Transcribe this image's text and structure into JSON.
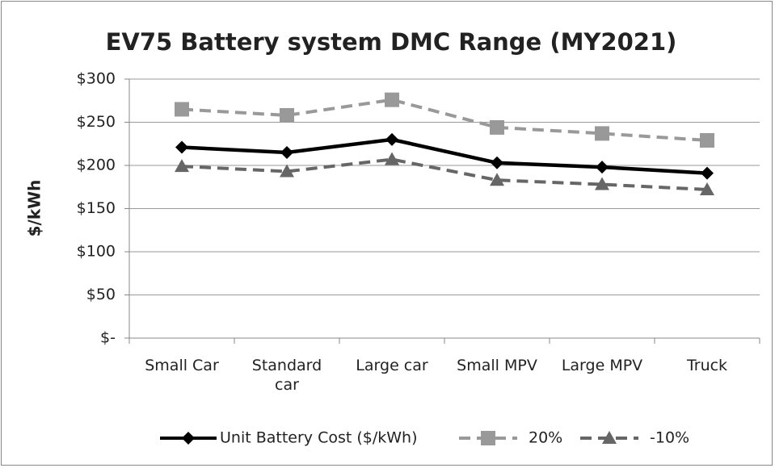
{
  "chart_data": {
    "type": "line",
    "title": "EV75 Battery system DMC Range (MY2021)",
    "y_label": "$/kWh",
    "categories": [
      "Small Car",
      "Standard car",
      "Large car",
      "Small MPV",
      "Large MPV",
      "Truck"
    ],
    "series": [
      {
        "name": "Unit Battery Cost ($/kWh)",
        "color": "#000000",
        "dashed": false,
        "marker": "diamond",
        "values": [
          221,
          215,
          230,
          203,
          198,
          191
        ]
      },
      {
        "name": "20%",
        "color": "#999999",
        "dashed": true,
        "marker": "square",
        "values": [
          265,
          258,
          276,
          244,
          237,
          229
        ]
      },
      {
        "name": "-10%",
        "color": "#666666",
        "dashed": true,
        "marker": "triangle",
        "values": [
          199,
          193,
          207,
          183,
          178,
          172
        ]
      }
    ],
    "ylim": [
      0,
      300
    ],
    "yticks": [
      {
        "value": 0,
        "label": "$-"
      },
      {
        "value": 50,
        "label": "$50"
      },
      {
        "value": 100,
        "label": "$100"
      },
      {
        "value": 150,
        "label": "$150"
      },
      {
        "value": 200,
        "label": "$200"
      },
      {
        "value": 250,
        "label": "$250"
      },
      {
        "value": 300,
        "label": "$300"
      }
    ],
    "grid": true,
    "legend": "bottom"
  }
}
